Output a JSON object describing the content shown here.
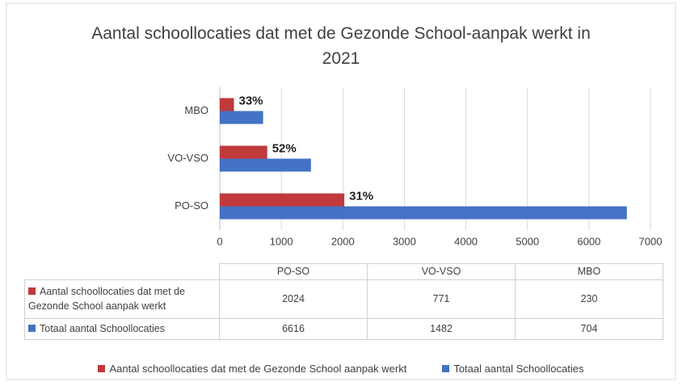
{
  "chart_data": {
    "type": "hbar",
    "title": "Aantal schoollocaties dat met de Gezonde School-aanpak werkt in 2021",
    "categories": [
      "PO-SO",
      "VO-VSO",
      "MBO"
    ],
    "series": [
      {
        "name": "Aantal schoollocaties dat met de Gezonde School aanpak werkt",
        "color": "#c0393b",
        "values": [
          2024,
          771,
          230
        ],
        "annotations": [
          "31%",
          "52%",
          "33%"
        ]
      },
      {
        "name": "Totaal aantal Schoollocaties",
        "color": "#4472c4",
        "values": [
          6616,
          1482,
          704
        ]
      }
    ],
    "xlim": [
      0,
      7000
    ],
    "xticks": [
      0,
      1000,
      2000,
      3000,
      4000,
      5000,
      6000,
      7000
    ],
    "grid": true,
    "data_table": true,
    "legend": "bottom"
  }
}
